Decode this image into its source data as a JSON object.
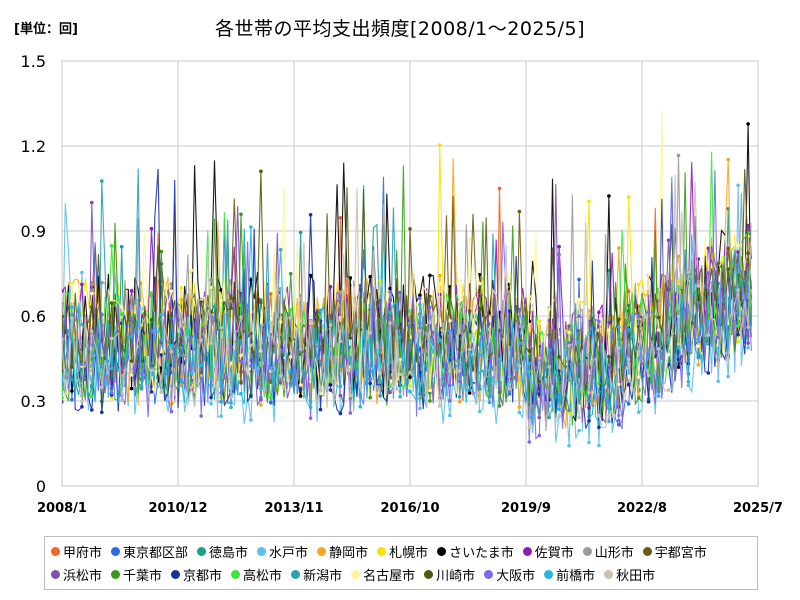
{
  "unit_label": "[単位：回]",
  "chart_data": {
    "type": "line",
    "title": "各世帯の平均支出頻度[2008/1～2025/5]",
    "xlabel": "",
    "ylabel": "",
    "ylim": [
      0,
      1.5
    ],
    "yticks": [
      "0",
      "0.3",
      "0.6",
      "0.9",
      "1.2",
      "1.5"
    ],
    "xticks": [
      "2008/1",
      "2010/12",
      "2013/11",
      "2016/10",
      "2019/9",
      "2022/8",
      "2025/7"
    ],
    "grid": true,
    "legend_position": "bottom",
    "series": [
      {
        "name": "甲府市",
        "color": "#f26522"
      },
      {
        "name": "東京都区部",
        "color": "#2d6be4"
      },
      {
        "name": "徳島市",
        "color": "#16a085"
      },
      {
        "name": "水戸市",
        "color": "#5bc0eb"
      },
      {
        "name": "静岡市",
        "color": "#f5a623"
      },
      {
        "name": "札幌市",
        "color": "#f5e400"
      },
      {
        "name": "さいたま市",
        "color": "#000000"
      },
      {
        "name": "佐賀市",
        "color": "#8e1bb5"
      },
      {
        "name": "山形市",
        "color": "#999999"
      },
      {
        "name": "宇都宮市",
        "color": "#6b5a12"
      },
      {
        "name": "浜松市",
        "color": "#7d4fb0"
      },
      {
        "name": "千葉市",
        "color": "#3a9a1a"
      },
      {
        "name": "京都市",
        "color": "#1a2fa8"
      },
      {
        "name": "高松市",
        "color": "#39e639"
      },
      {
        "name": "新潟市",
        "color": "#2aa0b5"
      },
      {
        "name": "名古屋市",
        "color": "#fff59d"
      },
      {
        "name": "川崎市",
        "color": "#4e5a12"
      },
      {
        "name": "大阪市",
        "color": "#7b68ee"
      },
      {
        "name": "前橋市",
        "color": "#26b5e0"
      },
      {
        "name": "秋田市",
        "color": "#c9c0b3"
      }
    ]
  }
}
